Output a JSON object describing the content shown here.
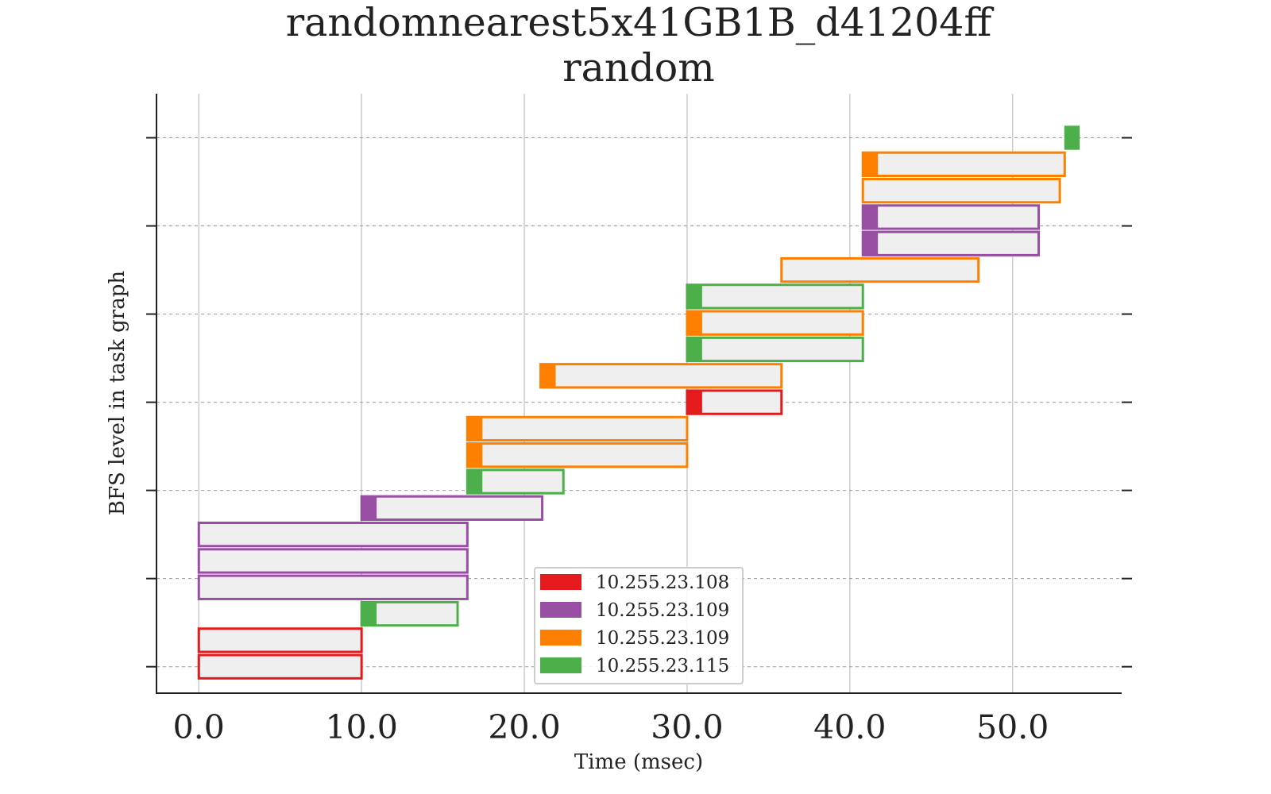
{
  "chart_data": {
    "type": "gantt",
    "title": "randomnearest5x41GB1B_d41204ff",
    "subtitle": "random",
    "xlabel": "Time (msec)",
    "ylabel": "BFS level in task graph",
    "xlim": [
      -2.6,
      56.7
    ],
    "xticks": [
      0,
      10,
      20,
      30,
      40,
      50
    ],
    "xtick_labels": [
      "0.0",
      "10.0",
      "20.0",
      "30.0",
      "40.0",
      "50.0"
    ],
    "ylim": [
      -0.3,
      6.5
    ],
    "level_count": 7,
    "grid": {
      "x": true,
      "y": "dashed"
    },
    "legend_position": "bottom-center",
    "legend": [
      {
        "label": "10.255.23.108",
        "color": "#e41a1c"
      },
      {
        "label": "10.255.23.109",
        "color": "#984ea3"
      },
      {
        "label": "10.255.23.109",
        "color": "#ff7f00"
      },
      {
        "label": "10.255.23.115",
        "color": "#4daf4a"
      }
    ],
    "tasks": [
      {
        "y": 0.0,
        "start": 0.0,
        "end": 10.0,
        "head_end": 0.0,
        "color": "#e41a1c"
      },
      {
        "y": 0.3,
        "start": 0.0,
        "end": 10.0,
        "head_end": 0.0,
        "color": "#e41a1c"
      },
      {
        "y": 0.6,
        "start": 10.0,
        "end": 15.9,
        "head_end": 10.9,
        "color": "#4daf4a"
      },
      {
        "y": 0.9,
        "start": 0.0,
        "end": 16.5,
        "head_end": 0.0,
        "color": "#984ea3"
      },
      {
        "y": 1.2,
        "start": 0.0,
        "end": 16.5,
        "head_end": 0.0,
        "color": "#984ea3"
      },
      {
        "y": 1.5,
        "start": 0.0,
        "end": 16.5,
        "head_end": 0.0,
        "color": "#984ea3"
      },
      {
        "y": 1.8,
        "start": 10.0,
        "end": 21.1,
        "head_end": 10.9,
        "color": "#984ea3"
      },
      {
        "y": 2.1,
        "start": 16.5,
        "end": 22.4,
        "head_end": 17.4,
        "color": "#4daf4a"
      },
      {
        "y": 2.4,
        "start": 16.5,
        "end": 30.0,
        "head_end": 17.4,
        "color": "#ff7f00"
      },
      {
        "y": 2.7,
        "start": 16.5,
        "end": 30.0,
        "head_end": 17.4,
        "color": "#ff7f00"
      },
      {
        "y": 3.0,
        "start": 30.0,
        "end": 35.8,
        "head_end": 30.9,
        "color": "#e41a1c"
      },
      {
        "y": 3.3,
        "start": 21.0,
        "end": 35.8,
        "head_end": 21.9,
        "color": "#ff7f00"
      },
      {
        "y": 3.6,
        "start": 30.0,
        "end": 40.8,
        "head_end": 30.9,
        "color": "#4daf4a"
      },
      {
        "y": 3.9,
        "start": 30.0,
        "end": 40.8,
        "head_end": 30.9,
        "color": "#ff7f00"
      },
      {
        "y": 4.2,
        "start": 30.0,
        "end": 40.8,
        "head_end": 30.9,
        "color": "#4daf4a"
      },
      {
        "y": 4.5,
        "start": 35.8,
        "end": 47.9,
        "head_end": 35.8,
        "color": "#ff7f00"
      },
      {
        "y": 4.8,
        "start": 40.8,
        "end": 51.6,
        "head_end": 41.7,
        "color": "#984ea3"
      },
      {
        "y": 5.1,
        "start": 40.8,
        "end": 51.6,
        "head_end": 41.7,
        "color": "#984ea3"
      },
      {
        "y": 5.4,
        "start": 40.8,
        "end": 52.9,
        "head_end": 40.8,
        "color": "#ff7f00"
      },
      {
        "y": 5.7,
        "start": 40.8,
        "end": 53.2,
        "head_end": 41.7,
        "color": "#ff7f00"
      },
      {
        "y": 6.0,
        "start": 53.2,
        "end": 54.1,
        "head_end": 54.1,
        "color": "#4daf4a"
      }
    ]
  }
}
